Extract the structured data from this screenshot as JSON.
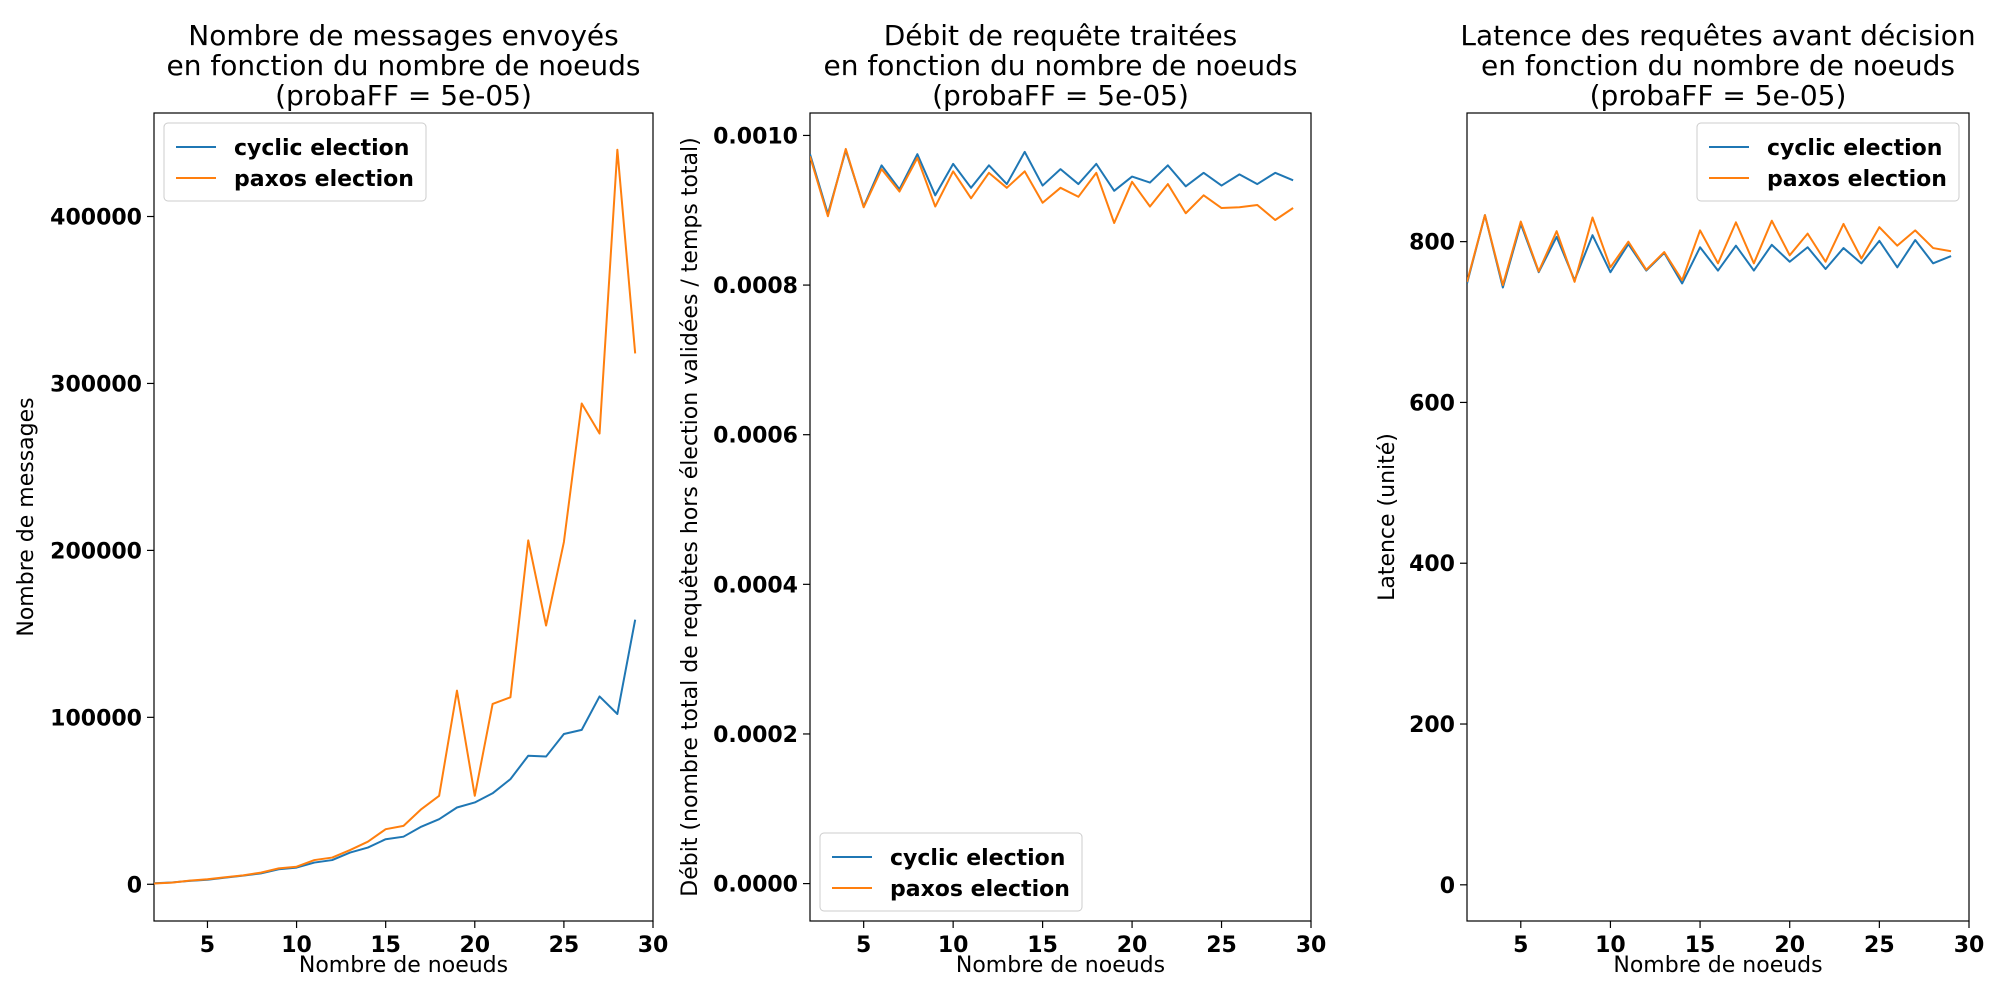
{
  "colors": {
    "cyclic": "#1f77b4",
    "paxos": "#ff7f0e"
  },
  "chart_data": [
    {
      "type": "line",
      "title_lines": [
        "Nombre de messages envoyés",
        "en fonction du nombre de noeuds",
        "(probaFF = 5e-05)"
      ],
      "xlabel": "Nombre de noeuds",
      "ylabel": "Nombre de messages",
      "xlim": [
        2,
        30
      ],
      "ylim": [
        -22000,
        462000
      ],
      "xticks": [
        5,
        10,
        15,
        20,
        25,
        30
      ],
      "yticks": [
        0,
        100000,
        200000,
        300000,
        400000
      ],
      "ytick_labels": [
        "0",
        "100000",
        "200000",
        "300000",
        "400000"
      ],
      "legend": "upper left",
      "x": [
        2,
        3,
        4,
        5,
        6,
        7,
        8,
        9,
        10,
        11,
        12,
        13,
        14,
        15,
        16,
        17,
        18,
        19,
        20,
        21,
        22,
        23,
        24,
        25,
        26,
        27,
        28,
        29
      ],
      "series": [
        {
          "name": "cyclic election",
          "values": [
            600,
            1100,
            2000,
            2700,
            4000,
            5200,
            6500,
            9000,
            10000,
            13000,
            14500,
            19000,
            22000,
            27000,
            28500,
            34500,
            39000,
            46000,
            49000,
            54500,
            63000,
            77000,
            76500,
            90000,
            92500,
            112500,
            102000,
            158500
          ]
        },
        {
          "name": "paxos election",
          "values": [
            500,
            1000,
            2200,
            3000,
            4200,
            5300,
            7000,
            9500,
            10500,
            14500,
            16000,
            20500,
            25500,
            33000,
            35000,
            45000,
            53000,
            116000,
            53000,
            108000,
            112000,
            206000,
            155000,
            205000,
            288000,
            270000,
            440000,
            318000
          ]
        }
      ]
    },
    {
      "type": "line",
      "title_lines": [
        "Débit de requête traitées",
        "en fonction du nombre de noeuds",
        "(probaFF = 5e-05)"
      ],
      "xlabel": "Nombre de noeuds",
      "ylabel": "Débit (nombre total de requêtes hors élection validées / temps total)",
      "xlim": [
        2,
        30
      ],
      "ylim": [
        -5e-05,
        0.00103
      ],
      "xticks": [
        5,
        10,
        15,
        20,
        25,
        30
      ],
      "yticks": [
        0,
        0.0002,
        0.0004,
        0.0006,
        0.0008,
        0.001
      ],
      "ytick_labels": [
        "0.0000",
        "0.0002",
        "0.0004",
        "0.0006",
        "0.0008",
        "0.0010"
      ],
      "legend": "lower left",
      "x": [
        2,
        3,
        4,
        5,
        6,
        7,
        8,
        9,
        10,
        11,
        12,
        13,
        14,
        15,
        16,
        17,
        18,
        19,
        20,
        21,
        22,
        23,
        24,
        25,
        26,
        27,
        28,
        29
      ],
      "series": [
        {
          "name": "cyclic election",
          "values": [
            0.000975,
            0.000895,
            0.00098,
            0.000905,
            0.00096,
            0.000928,
            0.000975,
            0.00092,
            0.000962,
            0.00093,
            0.00096,
            0.000935,
            0.000978,
            0.000933,
            0.000955,
            0.000935,
            0.000962,
            0.000926,
            0.000945,
            0.000937,
            0.00096,
            0.000932,
            0.00095,
            0.000933,
            0.000948,
            0.000935,
            0.00095,
            0.00094
          ]
        },
        {
          "name": "paxos election",
          "values": [
            0.000972,
            0.000892,
            0.000982,
            0.000904,
            0.000955,
            0.000925,
            0.00097,
            0.000905,
            0.000952,
            0.000916,
            0.00095,
            0.00093,
            0.000952,
            0.00091,
            0.00093,
            0.000918,
            0.00095,
            0.000883,
            0.000938,
            0.000905,
            0.000935,
            0.000896,
            0.00092,
            0.000903,
            0.000904,
            0.000907,
            0.000887,
            0.000903
          ]
        }
      ]
    },
    {
      "type": "line",
      "title_lines": [
        "Latence des requêtes avant décision",
        "en fonction du nombre de noeuds",
        "(probaFF = 5e-05)"
      ],
      "xlabel": "Nombre de noeuds",
      "ylabel": "Latence (unité)",
      "xlim": [
        2,
        30
      ],
      "ylim": [
        -45,
        960
      ],
      "xticks": [
        5,
        10,
        15,
        20,
        25,
        30
      ],
      "yticks": [
        0,
        200,
        400,
        600,
        800
      ],
      "ytick_labels": [
        "0",
        "200",
        "400",
        "600",
        "800"
      ],
      "legend": "upper right",
      "x": [
        2,
        3,
        4,
        5,
        6,
        7,
        8,
        9,
        10,
        11,
        12,
        13,
        14,
        15,
        16,
        17,
        18,
        19,
        20,
        21,
        22,
        23,
        24,
        25,
        26,
        27,
        28,
        29
      ],
      "series": [
        {
          "name": "cyclic election",
          "values": [
            748,
            833,
            743,
            822,
            762,
            806,
            752,
            808,
            762,
            797,
            764,
            786,
            748,
            793,
            764,
            795,
            764,
            796,
            775,
            793,
            766,
            792,
            773,
            801,
            768,
            802,
            773,
            782
          ]
        },
        {
          "name": "paxos election",
          "values": [
            750,
            833,
            746,
            825,
            763,
            813,
            750,
            830,
            768,
            800,
            765,
            787,
            752,
            814,
            773,
            824,
            773,
            826,
            783,
            810,
            775,
            822,
            779,
            818,
            795,
            814,
            792,
            788
          ]
        }
      ]
    }
  ]
}
